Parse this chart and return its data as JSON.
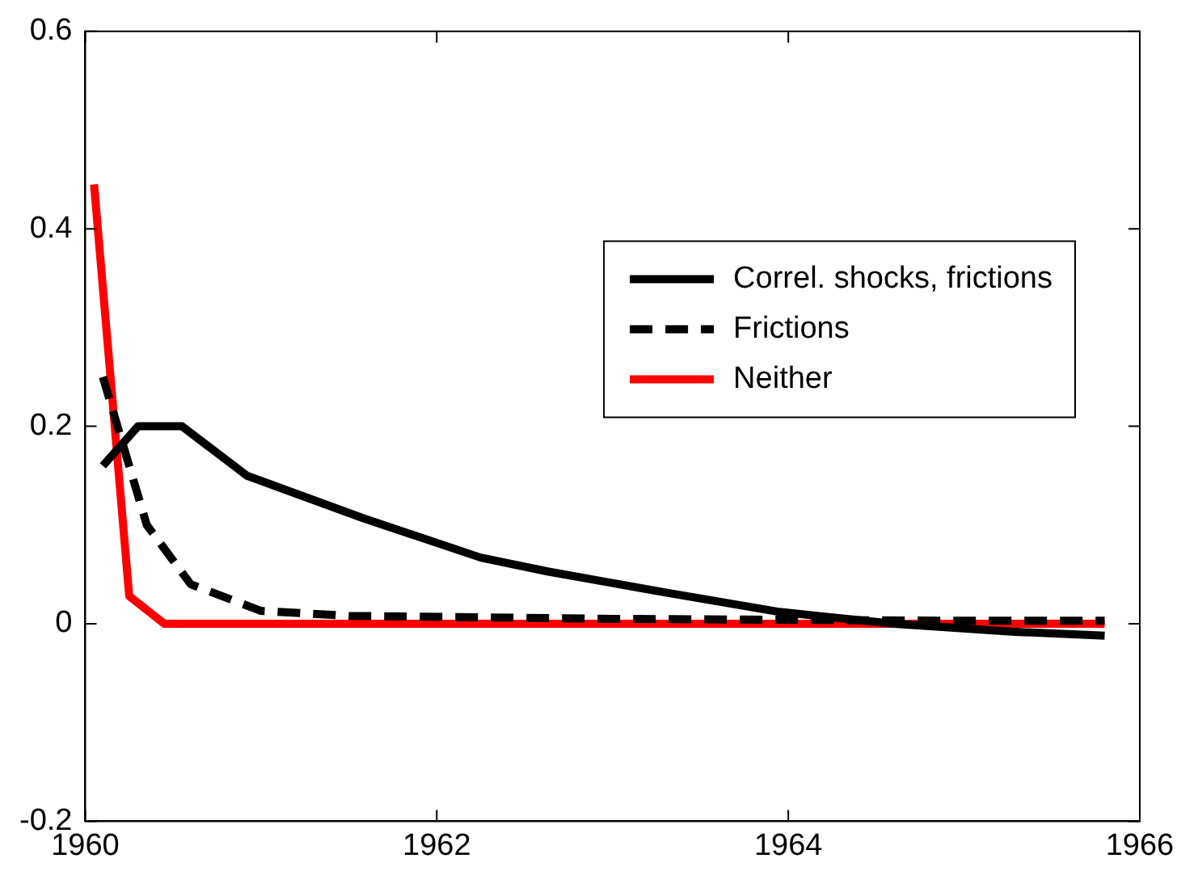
{
  "chart_data": {
    "type": "line",
    "xlim": [
      1960,
      1966
    ],
    "xticks": [
      1960,
      1962,
      1964,
      1966
    ],
    "ylim": [
      -0.2,
      0.6
    ],
    "yticks": [
      -0.2,
      0,
      0.2,
      0.4,
      0.6
    ],
    "grid": false,
    "legend": "right",
    "marker": "none",
    "series": [
      {
        "name": "Correl. shocks, frictions",
        "color": "#000000",
        "line_style": "solid",
        "x": [
          1960.1,
          1960.3,
          1960.55,
          1960.92,
          1961.58,
          1962.25,
          1962.63,
          1963.29,
          1963.95,
          1964.6,
          1965.27,
          1965.8
        ],
        "values": [
          0.16,
          0.2,
          0.2,
          0.15,
          0.107,
          0.067,
          0.053,
          0.032,
          0.012,
          0,
          -0.008,
          -0.012
        ]
      },
      {
        "name": "Frictions",
        "color": "#000000",
        "line_style": "dashed",
        "x": [
          1960.1,
          1960.35,
          1960.6,
          1961,
          1961.5,
          1963,
          1965,
          1965.8
        ],
        "values": [
          0.25,
          0.1,
          0.04,
          0.013,
          0.008,
          0.005,
          0.003,
          0.003
        ]
      },
      {
        "name": "Neither",
        "color": "#ff0000",
        "line_style": "solid",
        "x": [
          1960.05,
          1960.25,
          1960.45,
          1965.8
        ],
        "values": [
          0.445,
          0.028,
          0,
          0
        ]
      }
    ]
  }
}
